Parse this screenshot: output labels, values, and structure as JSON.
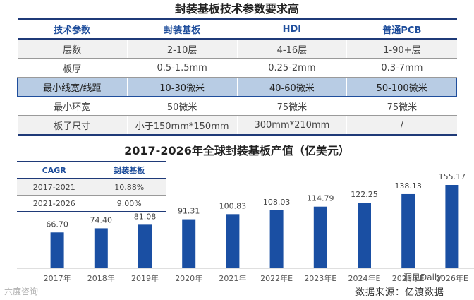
{
  "spec_table": {
    "title": "封装基板技术参数要求高",
    "headers": [
      "技术参数",
      "封装基板",
      "HDI",
      "普通PCB"
    ],
    "rows": [
      [
        "层数",
        "2-10层",
        "4-16层",
        "1-90+层"
      ],
      [
        "板厚",
        "0.5-1.5mm",
        "0.25-2mm",
        "0.3-7mm"
      ],
      [
        "最小线宽/线距",
        "10-30微米",
        "40-60微米",
        "50-100微米"
      ],
      [
        "最小环宽",
        "50微米",
        "75微米",
        "75微米"
      ],
      [
        "板子尺寸",
        "小于150mm*150mm",
        "300mm*210mm",
        "/"
      ]
    ],
    "highlight_row": 2
  },
  "cagr_table": {
    "headers": [
      "CAGR",
      "封装基板"
    ],
    "rows": [
      [
        "2017-2021",
        "10.88%"
      ],
      [
        "2021-2026",
        "9.00%"
      ]
    ]
  },
  "chart_data": {
    "type": "bar",
    "title": "2017-2026年全球封装基板产值（亿美元）",
    "categories": [
      "2017年",
      "2018年",
      "2019年",
      "2020年",
      "2021年",
      "2022年E",
      "2023年E",
      "2024年E",
      "2025年E",
      "2026年E"
    ],
    "values": [
      66.7,
      74.4,
      81.08,
      91.31,
      100.83,
      108.03,
      114.79,
      122.25,
      138.13,
      155.17
    ],
    "value_labels": [
      "66.70",
      "74.40",
      "81.08",
      "91.31",
      "100.83",
      "108.03",
      "114.79",
      "122.25",
      "138.13",
      "155.17"
    ],
    "ylim": [
      0,
      170
    ],
    "grid": false,
    "colors": {
      "bar": "#1a4fa3",
      "axis": "#bfbfbf"
    }
  },
  "watermarks": {
    "left": "六度咨询",
    "right": "洞见Daily"
  },
  "source": "数据来源：亿渡数据"
}
